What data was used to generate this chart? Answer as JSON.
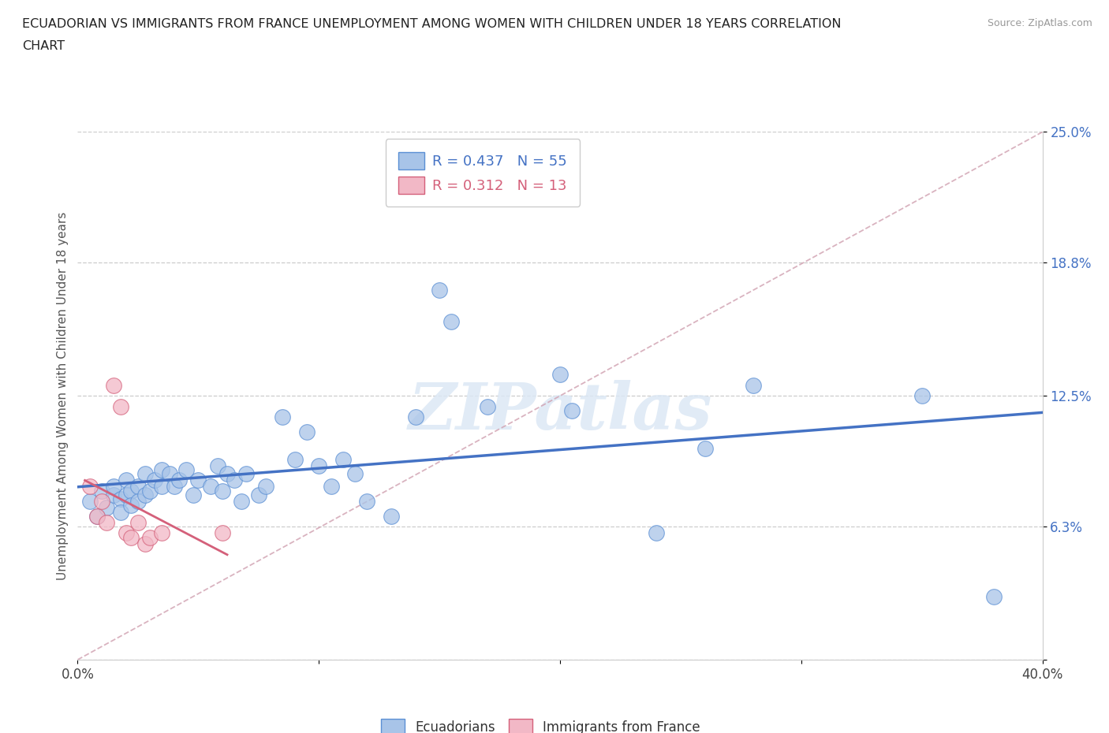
{
  "title_line1": "ECUADORIAN VS IMMIGRANTS FROM FRANCE UNEMPLOYMENT AMONG WOMEN WITH CHILDREN UNDER 18 YEARS CORRELATION",
  "title_line2": "CHART",
  "source": "Source: ZipAtlas.com",
  "ylabel": "Unemployment Among Women with Children Under 18 years",
  "xmin": 0.0,
  "xmax": 0.4,
  "ymin": 0.0,
  "ymax": 0.25,
  "ytick_vals": [
    0.0,
    0.063,
    0.125,
    0.188,
    0.25
  ],
  "ytick_labels": [
    "",
    "6.3%",
    "12.5%",
    "18.8%",
    "25.0%"
  ],
  "xtick_vals": [
    0.0,
    0.1,
    0.2,
    0.3,
    0.4
  ],
  "xtick_labels": [
    "0.0%",
    "",
    "",
    "",
    "40.0%"
  ],
  "watermark": "ZIPatlas",
  "blue_R": 0.437,
  "blue_N": 55,
  "pink_R": 0.312,
  "pink_N": 13,
  "blue_color": "#a8c4e8",
  "pink_color": "#f2b8c6",
  "blue_edge_color": "#5b8fd4",
  "pink_edge_color": "#d4607a",
  "blue_line_color": "#4472c4",
  "pink_line_color": "#d4607a",
  "ref_line_color": "#d0a0b0",
  "grid_color": "#cccccc",
  "blue_scatter": [
    [
      0.005,
      0.075
    ],
    [
      0.008,
      0.068
    ],
    [
      0.01,
      0.08
    ],
    [
      0.012,
      0.072
    ],
    [
      0.015,
      0.078
    ],
    [
      0.015,
      0.082
    ],
    [
      0.018,
      0.076
    ],
    [
      0.018,
      0.07
    ],
    [
      0.02,
      0.085
    ],
    [
      0.02,
      0.078
    ],
    [
      0.022,
      0.08
    ],
    [
      0.022,
      0.073
    ],
    [
      0.025,
      0.082
    ],
    [
      0.025,
      0.075
    ],
    [
      0.028,
      0.088
    ],
    [
      0.028,
      0.078
    ],
    [
      0.03,
      0.08
    ],
    [
      0.032,
      0.085
    ],
    [
      0.035,
      0.09
    ],
    [
      0.035,
      0.082
    ],
    [
      0.038,
      0.088
    ],
    [
      0.04,
      0.082
    ],
    [
      0.042,
      0.085
    ],
    [
      0.045,
      0.09
    ],
    [
      0.048,
      0.078
    ],
    [
      0.05,
      0.085
    ],
    [
      0.055,
      0.082
    ],
    [
      0.058,
      0.092
    ],
    [
      0.06,
      0.08
    ],
    [
      0.062,
      0.088
    ],
    [
      0.065,
      0.085
    ],
    [
      0.068,
      0.075
    ],
    [
      0.07,
      0.088
    ],
    [
      0.075,
      0.078
    ],
    [
      0.078,
      0.082
    ],
    [
      0.085,
      0.115
    ],
    [
      0.09,
      0.095
    ],
    [
      0.095,
      0.108
    ],
    [
      0.1,
      0.092
    ],
    [
      0.105,
      0.082
    ],
    [
      0.11,
      0.095
    ],
    [
      0.115,
      0.088
    ],
    [
      0.12,
      0.075
    ],
    [
      0.13,
      0.068
    ],
    [
      0.14,
      0.115
    ],
    [
      0.15,
      0.175
    ],
    [
      0.155,
      0.16
    ],
    [
      0.17,
      0.12
    ],
    [
      0.2,
      0.135
    ],
    [
      0.205,
      0.118
    ],
    [
      0.24,
      0.06
    ],
    [
      0.26,
      0.1
    ],
    [
      0.28,
      0.13
    ],
    [
      0.35,
      0.125
    ],
    [
      0.38,
      0.03
    ]
  ],
  "pink_scatter": [
    [
      0.005,
      0.082
    ],
    [
      0.008,
      0.068
    ],
    [
      0.01,
      0.075
    ],
    [
      0.012,
      0.065
    ],
    [
      0.015,
      0.13
    ],
    [
      0.018,
      0.12
    ],
    [
      0.02,
      0.06
    ],
    [
      0.022,
      0.058
    ],
    [
      0.025,
      0.065
    ],
    [
      0.028,
      0.055
    ],
    [
      0.03,
      0.058
    ],
    [
      0.035,
      0.06
    ],
    [
      0.06,
      0.06
    ]
  ]
}
